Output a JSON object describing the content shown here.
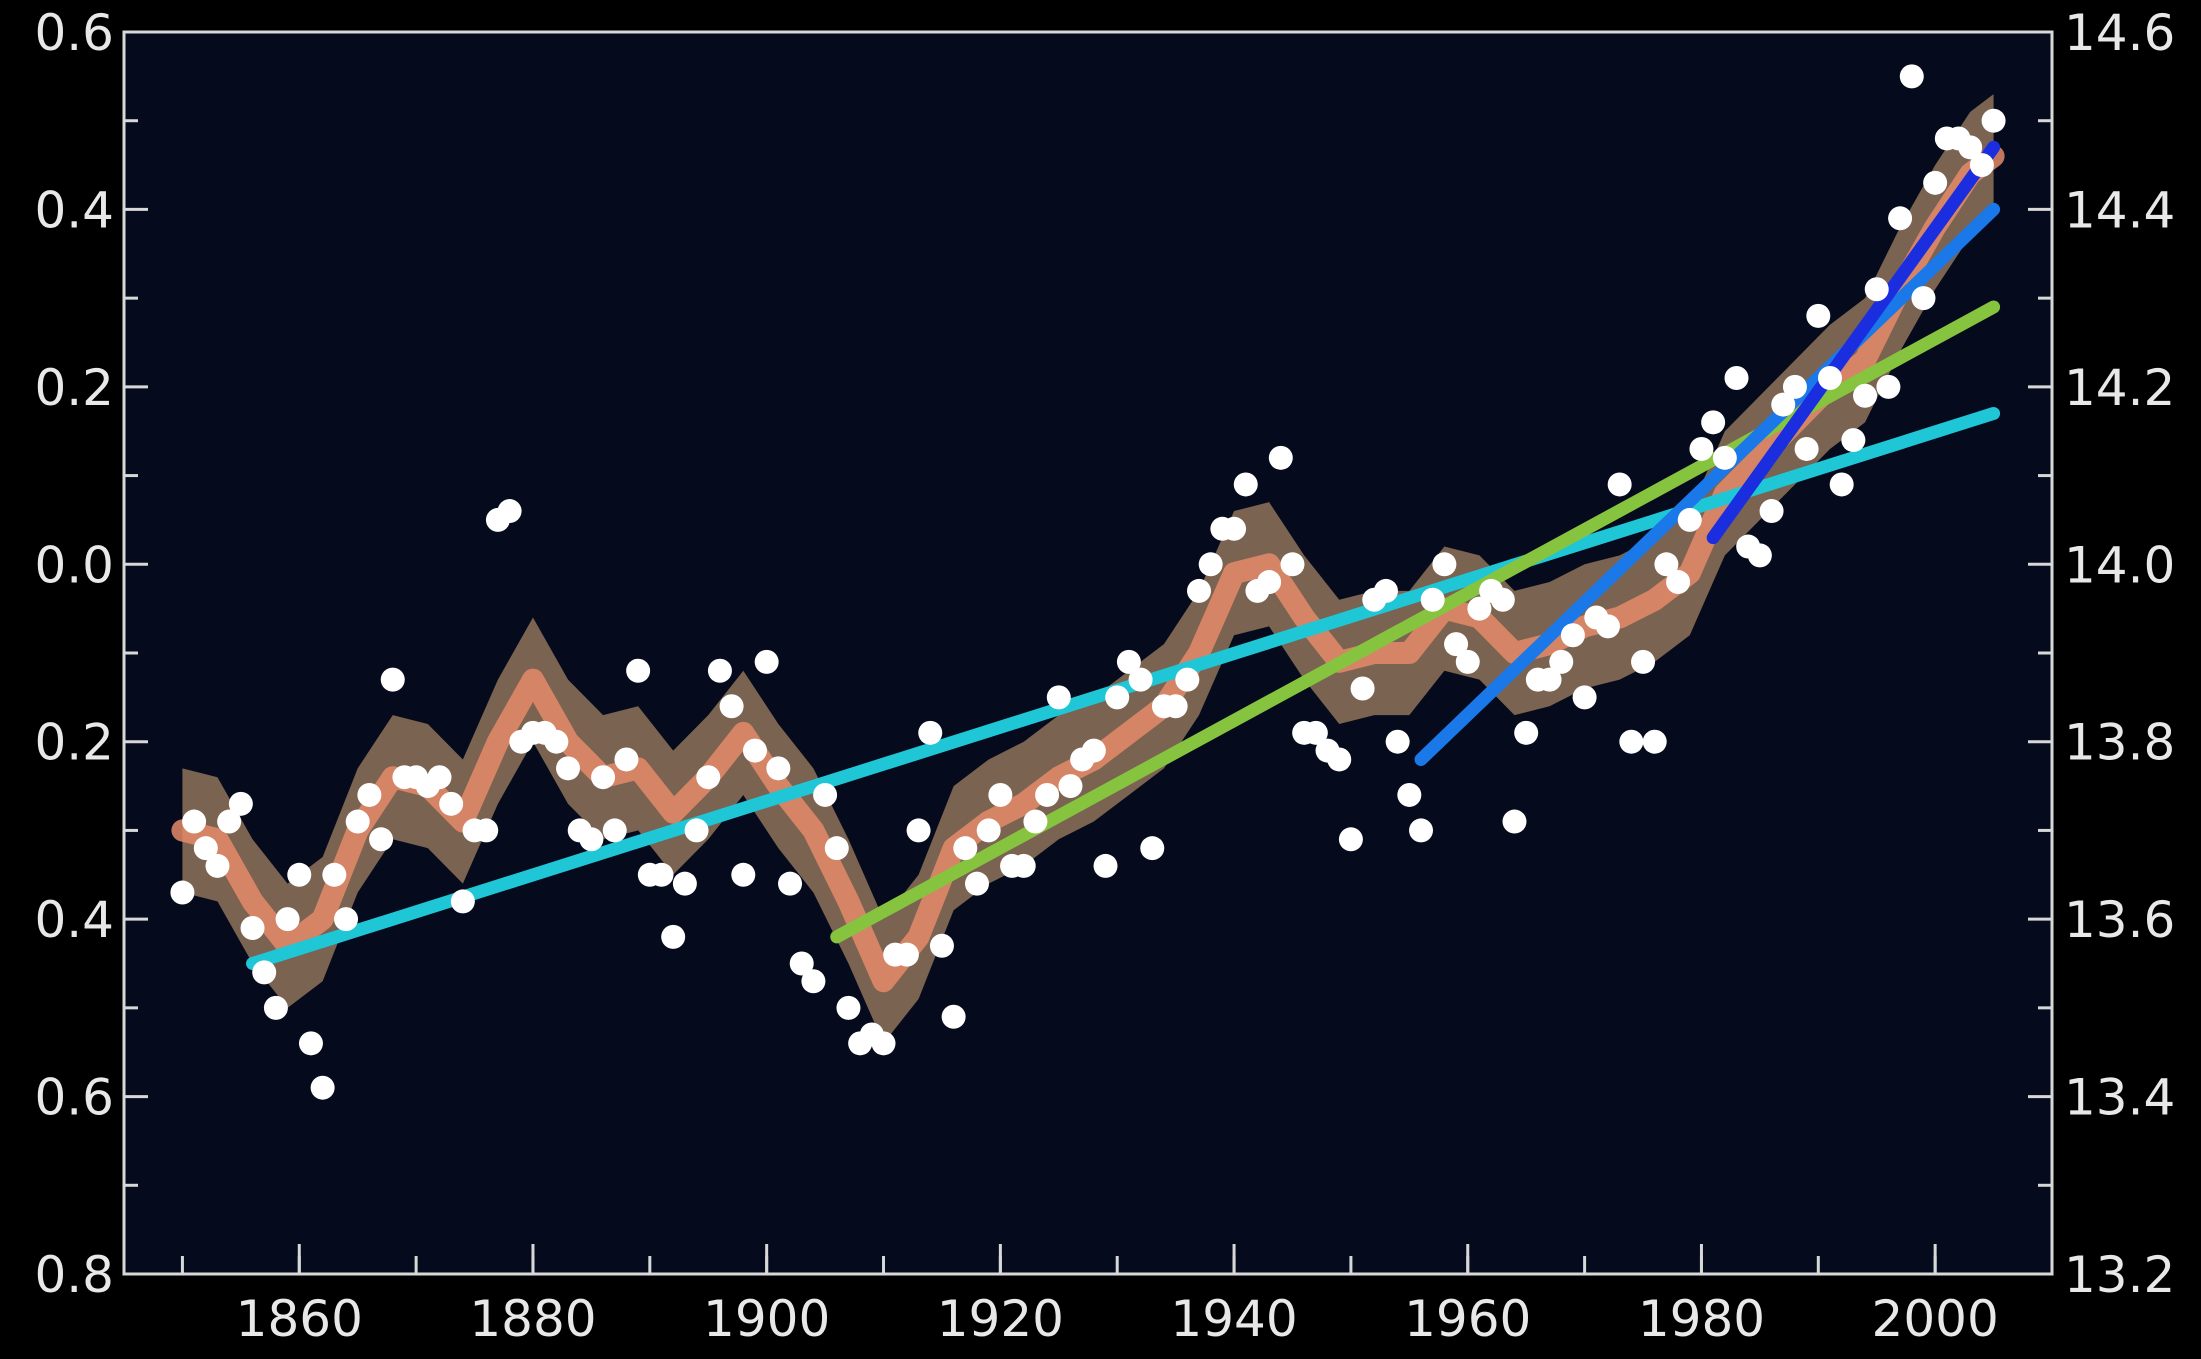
{
  "chart_data": {
    "type": "line",
    "title": "",
    "xlabel": "",
    "ylabel": "",
    "xlim": [
      1845,
      2010
    ],
    "ylim": [
      -0.8,
      0.6
    ],
    "ylim_right": [
      13.2,
      14.6
    ],
    "x_ticks": [
      1860,
      1880,
      1900,
      1920,
      1940,
      1960,
      1980,
      2000
    ],
    "x_tick_labels": [
      "1860",
      "1880",
      "1900",
      "1920",
      "1940",
      "1960",
      "1980",
      "2000"
    ],
    "y_ticks": [
      0.6,
      0.4,
      0.2,
      0.0,
      -0.2,
      -0.4,
      -0.6,
      -0.8
    ],
    "y_tick_labels": [
      "0.6",
      "0.4",
      "0.2",
      "0.0",
      "0.2",
      "0.4",
      "0.6",
      "0.8"
    ],
    "y_ticks_right": [
      14.6,
      14.4,
      14.2,
      14.0,
      13.8,
      13.6,
      13.4,
      13.2
    ],
    "y_tick_labels_right": [
      "14.6",
      "14.4",
      "14.2",
      "14.0",
      "13.8",
      "13.6",
      "13.4",
      "13.2"
    ],
    "grid": false,
    "colors": {
      "background": "#000000",
      "plot_background": "#050b1c",
      "axis": "#d8d8d8",
      "points": "#ffffff",
      "smooth_band_outer": "#7a6350",
      "smooth_band_inner": "#e58a6a",
      "trend_150yr": "#1fc6d6",
      "trend_100yr": "#86c440",
      "trend_50yr": "#1a78e8",
      "trend_25yr": "#1a2ee0"
    },
    "annual_points": {
      "x": [
        1850,
        1851,
        1852,
        1853,
        1854,
        1855,
        1856,
        1857,
        1858,
        1859,
        1860,
        1861,
        1862,
        1863,
        1864,
        1865,
        1866,
        1867,
        1868,
        1869,
        1870,
        1871,
        1872,
        1873,
        1874,
        1875,
        1876,
        1877,
        1878,
        1879,
        1880,
        1881,
        1882,
        1883,
        1884,
        1885,
        1886,
        1887,
        1888,
        1889,
        1890,
        1891,
        1892,
        1893,
        1894,
        1895,
        1896,
        1897,
        1898,
        1899,
        1900,
        1901,
        1902,
        1903,
        1904,
        1905,
        1906,
        1907,
        1908,
        1909,
        1910,
        1911,
        1912,
        1913,
        1914,
        1915,
        1916,
        1917,
        1918,
        1919,
        1920,
        1921,
        1922,
        1923,
        1924,
        1925,
        1926,
        1927,
        1928,
        1929,
        1930,
        1931,
        1932,
        1933,
        1934,
        1935,
        1936,
        1937,
        1938,
        1939,
        1940,
        1941,
        1942,
        1943,
        1944,
        1945,
        1946,
        1947,
        1948,
        1949,
        1950,
        1951,
        1952,
        1953,
        1954,
        1955,
        1956,
        1957,
        1958,
        1959,
        1960,
        1961,
        1962,
        1963,
        1964,
        1965,
        1966,
        1967,
        1968,
        1969,
        1970,
        1971,
        1972,
        1973,
        1974,
        1975,
        1976,
        1977,
        1978,
        1979,
        1980,
        1981,
        1982,
        1983,
        1984,
        1985,
        1986,
        1987,
        1988,
        1989,
        1990,
        1991,
        1992,
        1993,
        1994,
        1995,
        1996,
        1997,
        1998,
        1999,
        2000,
        2001,
        2002,
        2003,
        2004,
        2005
      ],
      "y": [
        -0.37,
        -0.29,
        -0.32,
        -0.34,
        -0.29,
        -0.27,
        -0.41,
        -0.46,
        -0.5,
        -0.4,
        -0.35,
        -0.54,
        -0.59,
        -0.35,
        -0.4,
        -0.29,
        -0.26,
        -0.31,
        -0.13,
        -0.24,
        -0.24,
        -0.25,
        -0.24,
        -0.27,
        -0.38,
        -0.3,
        -0.3,
        0.05,
        0.06,
        -0.2,
        -0.19,
        -0.19,
        -0.2,
        -0.23,
        -0.3,
        -0.31,
        -0.24,
        -0.3,
        -0.22,
        -0.12,
        -0.35,
        -0.35,
        -0.42,
        -0.36,
        -0.3,
        -0.24,
        -0.12,
        -0.16,
        -0.35,
        -0.21,
        -0.11,
        -0.23,
        -0.36,
        -0.45,
        -0.47,
        -0.26,
        -0.32,
        -0.5,
        -0.54,
        -0.53,
        -0.54,
        -0.44,
        -0.44,
        -0.3,
        -0.19,
        -0.43,
        -0.51,
        -0.32,
        -0.36,
        -0.3,
        -0.26,
        -0.34,
        -0.34,
        -0.29,
        -0.26,
        -0.15,
        -0.25,
        -0.22,
        -0.21,
        -0.34,
        -0.15,
        -0.11,
        -0.13,
        -0.32,
        -0.16,
        -0.16,
        -0.13,
        -0.03,
        0.0,
        0.04,
        0.04,
        0.09,
        -0.03,
        -0.02,
        0.12,
        0.0,
        -0.19,
        -0.19,
        -0.21,
        -0.22,
        -0.31,
        -0.14,
        -0.04,
        -0.03,
        -0.2,
        -0.26,
        -0.3,
        -0.04,
        0.0,
        -0.09,
        -0.11,
        -0.05,
        -0.03,
        -0.04,
        -0.29,
        -0.19,
        -0.13,
        -0.13,
        -0.11,
        -0.08,
        -0.15,
        -0.06,
        -0.07,
        0.09,
        -0.2,
        -0.11,
        -0.2,
        0.0,
        -0.02,
        0.05,
        0.13,
        0.16,
        0.12,
        0.21,
        0.02,
        0.01,
        0.06,
        0.18,
        0.2,
        0.13,
        0.28,
        0.21,
        0.09,
        0.14,
        0.19,
        0.31,
        0.2,
        0.39,
        0.55,
        0.3,
        0.43,
        0.48,
        0.48,
        0.47,
        0.45,
        0.5
      ]
    },
    "smoothed_curve": {
      "x": [
        1850,
        1853,
        1856,
        1859,
        1862,
        1865,
        1868,
        1871,
        1874,
        1877,
        1880,
        1883,
        1886,
        1889,
        1892,
        1895,
        1898,
        1901,
        1904,
        1907,
        1910,
        1913,
        1916,
        1919,
        1922,
        1925,
        1928,
        1931,
        1934,
        1937,
        1940,
        1943,
        1946,
        1949,
        1952,
        1955,
        1958,
        1961,
        1964,
        1967,
        1970,
        1973,
        1976,
        1979,
        1982,
        1985,
        1988,
        1991,
        1994,
        1997,
        2000,
        2003,
        2005
      ],
      "y": [
        -0.3,
        -0.31,
        -0.38,
        -0.43,
        -0.4,
        -0.3,
        -0.24,
        -0.25,
        -0.29,
        -0.2,
        -0.13,
        -0.2,
        -0.24,
        -0.23,
        -0.28,
        -0.24,
        -0.19,
        -0.25,
        -0.3,
        -0.38,
        -0.47,
        -0.42,
        -0.32,
        -0.29,
        -0.27,
        -0.24,
        -0.22,
        -0.19,
        -0.16,
        -0.1,
        -0.01,
        0.0,
        -0.06,
        -0.11,
        -0.1,
        -0.1,
        -0.05,
        -0.06,
        -0.1,
        -0.09,
        -0.07,
        -0.06,
        -0.04,
        -0.01,
        0.08,
        0.12,
        0.16,
        0.2,
        0.23,
        0.31,
        0.38,
        0.44,
        0.46
      ],
      "band_halfwidth": 0.07
    },
    "series": [
      {
        "x": [
          1856,
          2005
        ],
        "y": [
          -0.45,
          0.17
        ]
      },
      {
        "x": [
          1906,
          2005
        ],
        "y": [
          -0.42,
          0.29
        ]
      },
      {
        "x": [
          1956,
          2005
        ],
        "y": [
          -0.22,
          0.4
        ]
      },
      {
        "x": [
          1981,
          2005
        ],
        "y": [
          0.03,
          0.47
        ]
      }
    ]
  }
}
